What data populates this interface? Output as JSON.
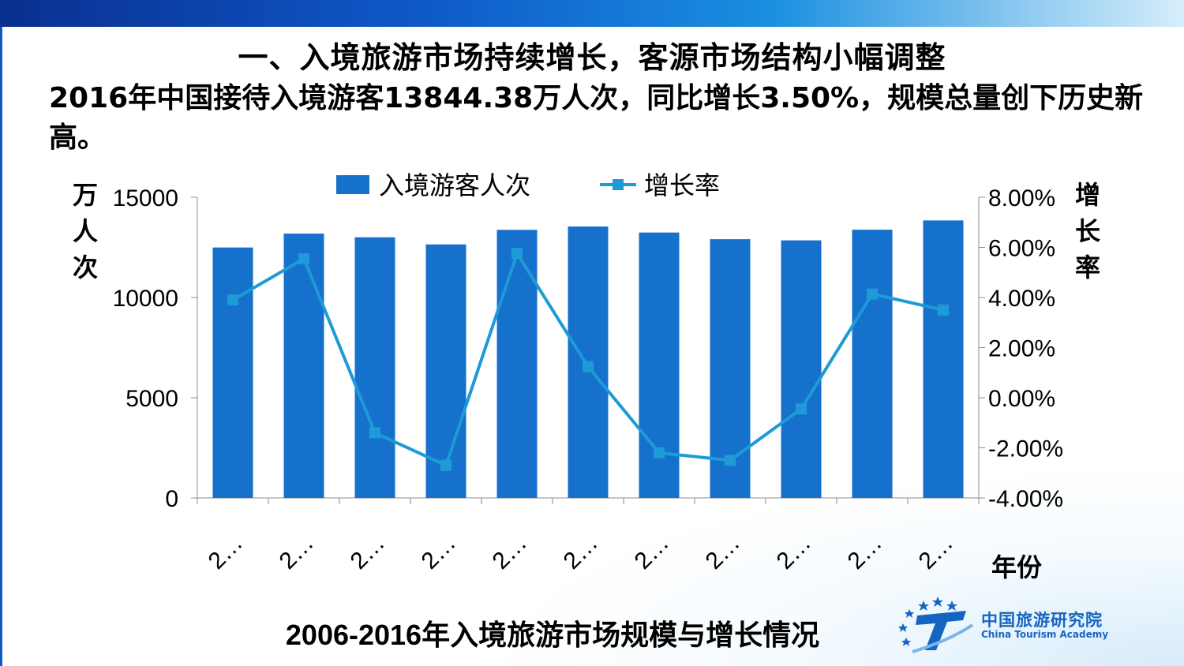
{
  "slide": {
    "title": "一、入境旅游市场持续增长，客源市场结构小幅调整",
    "subtitle": "2016年中国接待入境游客13844.38万人次，同比增长3.50%，规模总量创下历史新高。",
    "caption": "2006-2016年入境旅游市场规模与增长情况"
  },
  "logo": {
    "name_cn": "中国旅游研究院",
    "name_en": "China Tourism Academy"
  },
  "chart_data": {
    "type": "bar",
    "x_tick_labels": [
      "2…",
      "2…",
      "2…",
      "2…",
      "2…",
      "2…",
      "2…",
      "2…",
      "2…",
      "2…",
      "2…"
    ],
    "xlabel": "年份",
    "ylabel_left": "万人次",
    "ylabel_right": "增长率",
    "ylim_left": [
      0,
      15000
    ],
    "ylim_right": [
      -4.0,
      8.0
    ],
    "yticks_left": [
      "0",
      "5000",
      "10000",
      "15000"
    ],
    "yticks_right": [
      "-4.00%",
      "-2.00%",
      "0.00%",
      "2.00%",
      "4.00%",
      "6.00%",
      "8.00%"
    ],
    "legend_position": "top",
    "series": [
      {
        "name": "入境游客人次",
        "type": "bar",
        "axis": "left",
        "color": "#1571cc",
        "values": [
          12494,
          13187,
          13003,
          12648,
          13376,
          13542,
          13241,
          12908,
          12850,
          13382,
          13844
        ]
      },
      {
        "name": "增长率",
        "type": "line",
        "axis": "right",
        "color": "#1e9ad6",
        "values": [
          3.9,
          5.55,
          -1.4,
          -2.7,
          5.76,
          1.24,
          -2.2,
          -2.5,
          -0.45,
          4.14,
          3.5
        ]
      }
    ]
  }
}
